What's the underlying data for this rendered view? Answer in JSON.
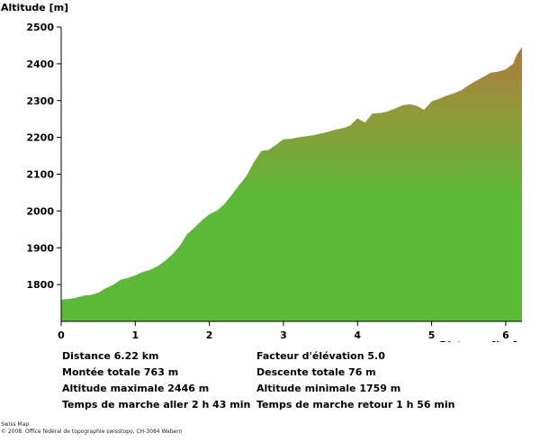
{
  "chart_data": {
    "type": "area",
    "title": "",
    "ylabel": "Altitude [m]",
    "xlabel": "Distance [km]",
    "xlim": [
      0,
      6.22
    ],
    "ylim": [
      1700,
      2500
    ],
    "xticks": [
      0,
      1,
      2,
      3,
      4,
      5,
      6
    ],
    "yticks": [
      1800,
      1900,
      2000,
      2100,
      2200,
      2300,
      2400,
      2500
    ],
    "grid": false,
    "colors": {
      "low": "#5cb838",
      "high": "#b07a3e",
      "mid": "#8f9a3a"
    },
    "series": [
      {
        "x": [
          0,
          0.1,
          0.2,
          0.3,
          0.4,
          0.5,
          0.6,
          0.7,
          0.8,
          0.9,
          1.0,
          1.1,
          1.2,
          1.3,
          1.4,
          1.5,
          1.6,
          1.7,
          1.8,
          1.9,
          2.0,
          2.1,
          2.2,
          2.3,
          2.4,
          2.5,
          2.6,
          2.7,
          2.8,
          2.9,
          3.0,
          3.1,
          3.2,
          3.3,
          3.4,
          3.5,
          3.6,
          3.7,
          3.8,
          3.9,
          4.0,
          4.1,
          4.2,
          4.3,
          4.4,
          4.5,
          4.6,
          4.7,
          4.8,
          4.9,
          5.0,
          5.1,
          5.2,
          5.3,
          5.4,
          5.5,
          5.6,
          5.7,
          5.8,
          5.9,
          6.0,
          6.1,
          6.15,
          6.22
        ],
        "y": [
          1759,
          1761,
          1764,
          1770,
          1772,
          1778,
          1790,
          1799,
          1813,
          1818,
          1825,
          1834,
          1840,
          1850,
          1864,
          1882,
          1905,
          1937,
          1955,
          1975,
          1991,
          2001,
          2018,
          2043,
          2070,
          2095,
          2132,
          2163,
          2166,
          2180,
          2195,
          2196,
          2200,
          2203,
          2206,
          2210,
          2215,
          2221,
          2225,
          2232,
          2252,
          2240,
          2265,
          2266,
          2270,
          2278,
          2287,
          2290,
          2286,
          2275,
          2298,
          2305,
          2313,
          2320,
          2328,
          2342,
          2354,
          2365,
          2376,
          2379,
          2385,
          2400,
          2425,
          2446
        ]
      }
    ]
  },
  "stats": {
    "left": [
      "Distance 6.22 km",
      "Montée totale  763 m",
      "Altitude maximale  2446 m",
      "Temps de marche aller  2 h 43 min"
    ],
    "right": [
      "Facteur d'élévation 5.0",
      "Descente totale  76 m",
      "Altitude minimale  1759 m",
      "Temps de marche retour  1 h 56 min"
    ]
  },
  "copyright": {
    "line1": "Swiss Map",
    "line2": "© 2008. Office fédéral de topographie swisstopo, CH-3084 Wabern"
  }
}
